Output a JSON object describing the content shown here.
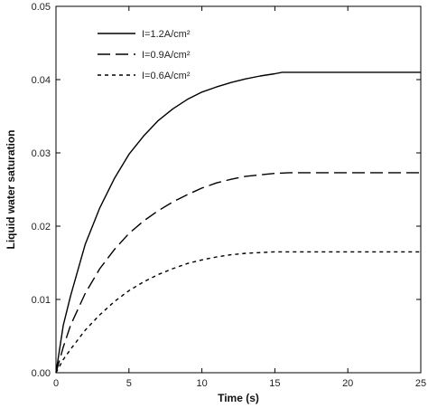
{
  "chart_data": {
    "type": "line",
    "title": "",
    "xlabel": "Time (s)",
    "ylabel": "Liquid water saturation",
    "xlim": [
      0,
      25
    ],
    "ylim": [
      0,
      0.05
    ],
    "xticks": [
      "0",
      "5",
      "10",
      "15",
      "20",
      "25"
    ],
    "yticks": [
      "0.00",
      "0.01",
      "0.02",
      "0.03",
      "0.04",
      "0.05"
    ],
    "grid": false,
    "legend_position": "top-left",
    "series": [
      {
        "name": "I=1.2A/cm²",
        "style": "solid",
        "color": "#000000",
        "x": [
          0,
          0.5,
          1,
          2,
          3,
          4,
          5,
          6,
          7,
          8,
          9,
          10,
          11,
          12,
          13,
          14,
          15,
          15.5,
          16,
          18,
          20,
          22,
          25
        ],
        "y": [
          0,
          0.0065,
          0.0105,
          0.0175,
          0.0225,
          0.0265,
          0.0298,
          0.0323,
          0.0344,
          0.036,
          0.0373,
          0.0383,
          0.039,
          0.0396,
          0.0401,
          0.0405,
          0.0408,
          0.041,
          0.041,
          0.041,
          0.041,
          0.041,
          0.041
        ]
      },
      {
        "name": "I=0.9A/cm²",
        "style": "dashed",
        "color": "#000000",
        "x": [
          0,
          0.5,
          1,
          2,
          3,
          4,
          5,
          6,
          7,
          8,
          9,
          10,
          11,
          12,
          13,
          14,
          15,
          16,
          18,
          20,
          22,
          25
        ],
        "y": [
          0,
          0.0035,
          0.0065,
          0.0108,
          0.0142,
          0.0168,
          0.019,
          0.0207,
          0.0221,
          0.0233,
          0.0243,
          0.0252,
          0.0259,
          0.0264,
          0.0268,
          0.027,
          0.0272,
          0.0273,
          0.0273,
          0.0273,
          0.0273,
          0.0273
        ]
      },
      {
        "name": "I=0.6A/cm²",
        "style": "dotted",
        "color": "#000000",
        "x": [
          0,
          0.5,
          1,
          2,
          3,
          4,
          5,
          6,
          7,
          8,
          9,
          10,
          11,
          12,
          13,
          14,
          15,
          16,
          18,
          20,
          22,
          25
        ],
        "y": [
          0,
          0.0018,
          0.0032,
          0.0058,
          0.0079,
          0.0097,
          0.0112,
          0.0124,
          0.0134,
          0.0142,
          0.0149,
          0.0154,
          0.0158,
          0.0161,
          0.0163,
          0.0164,
          0.0165,
          0.0165,
          0.0165,
          0.0165,
          0.0165,
          0.0165
        ]
      }
    ]
  }
}
